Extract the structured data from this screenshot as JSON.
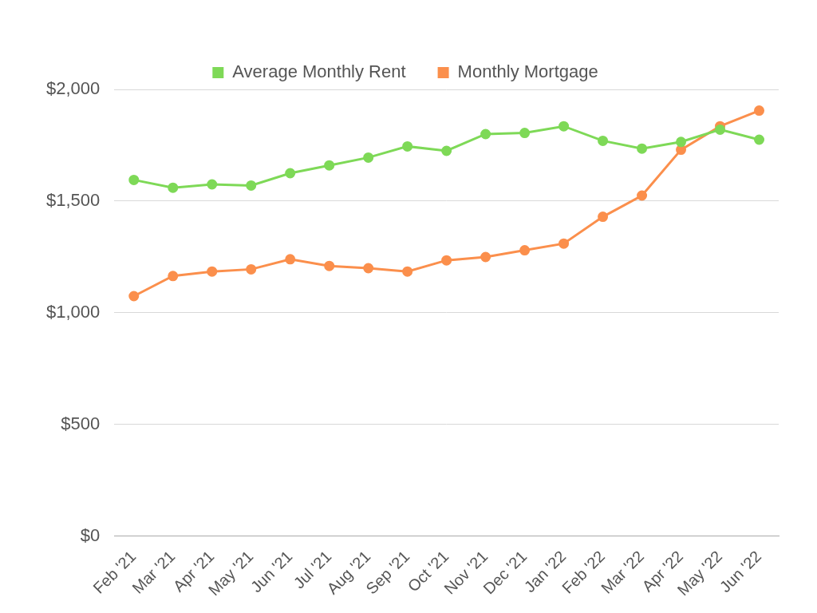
{
  "chart_data": {
    "type": "line",
    "categories": [
      "Feb '21",
      "Mar '21",
      "Apr '21",
      "May '21",
      "Jun '21",
      "Jul '21",
      "Aug '21",
      "Sep '21",
      "Oct '21",
      "Nov '21",
      "Dec '21",
      "Jan '22",
      "Feb '22",
      "Mar '22",
      "Apr '22",
      "May '22",
      "Jun '22"
    ],
    "series": [
      {
        "name": "Average Monthly Rent",
        "color": "#7ed957",
        "values": [
          1595,
          1560,
          1575,
          1570,
          1625,
          1660,
          1695,
          1745,
          1725,
          1800,
          1805,
          1835,
          1770,
          1735,
          1765,
          1820,
          1775
        ]
      },
      {
        "name": "Monthly Mortgage",
        "color": "#fb8f4c",
        "values": [
          1075,
          1165,
          1185,
          1195,
          1240,
          1210,
          1200,
          1185,
          1235,
          1250,
          1280,
          1310,
          1430,
          1525,
          1730,
          1835,
          1905
        ]
      }
    ],
    "ylim": [
      0,
      2000
    ],
    "yticks": [
      {
        "value": 0,
        "label": "$0"
      },
      {
        "value": 500,
        "label": "$500"
      },
      {
        "value": 1000,
        "label": "$1,000"
      },
      {
        "value": 1500,
        "label": "$1,500"
      },
      {
        "value": 2000,
        "label": "$2,000"
      }
    ],
    "grid": true,
    "legend": "top",
    "marker": "circle",
    "line_style": "solid"
  }
}
